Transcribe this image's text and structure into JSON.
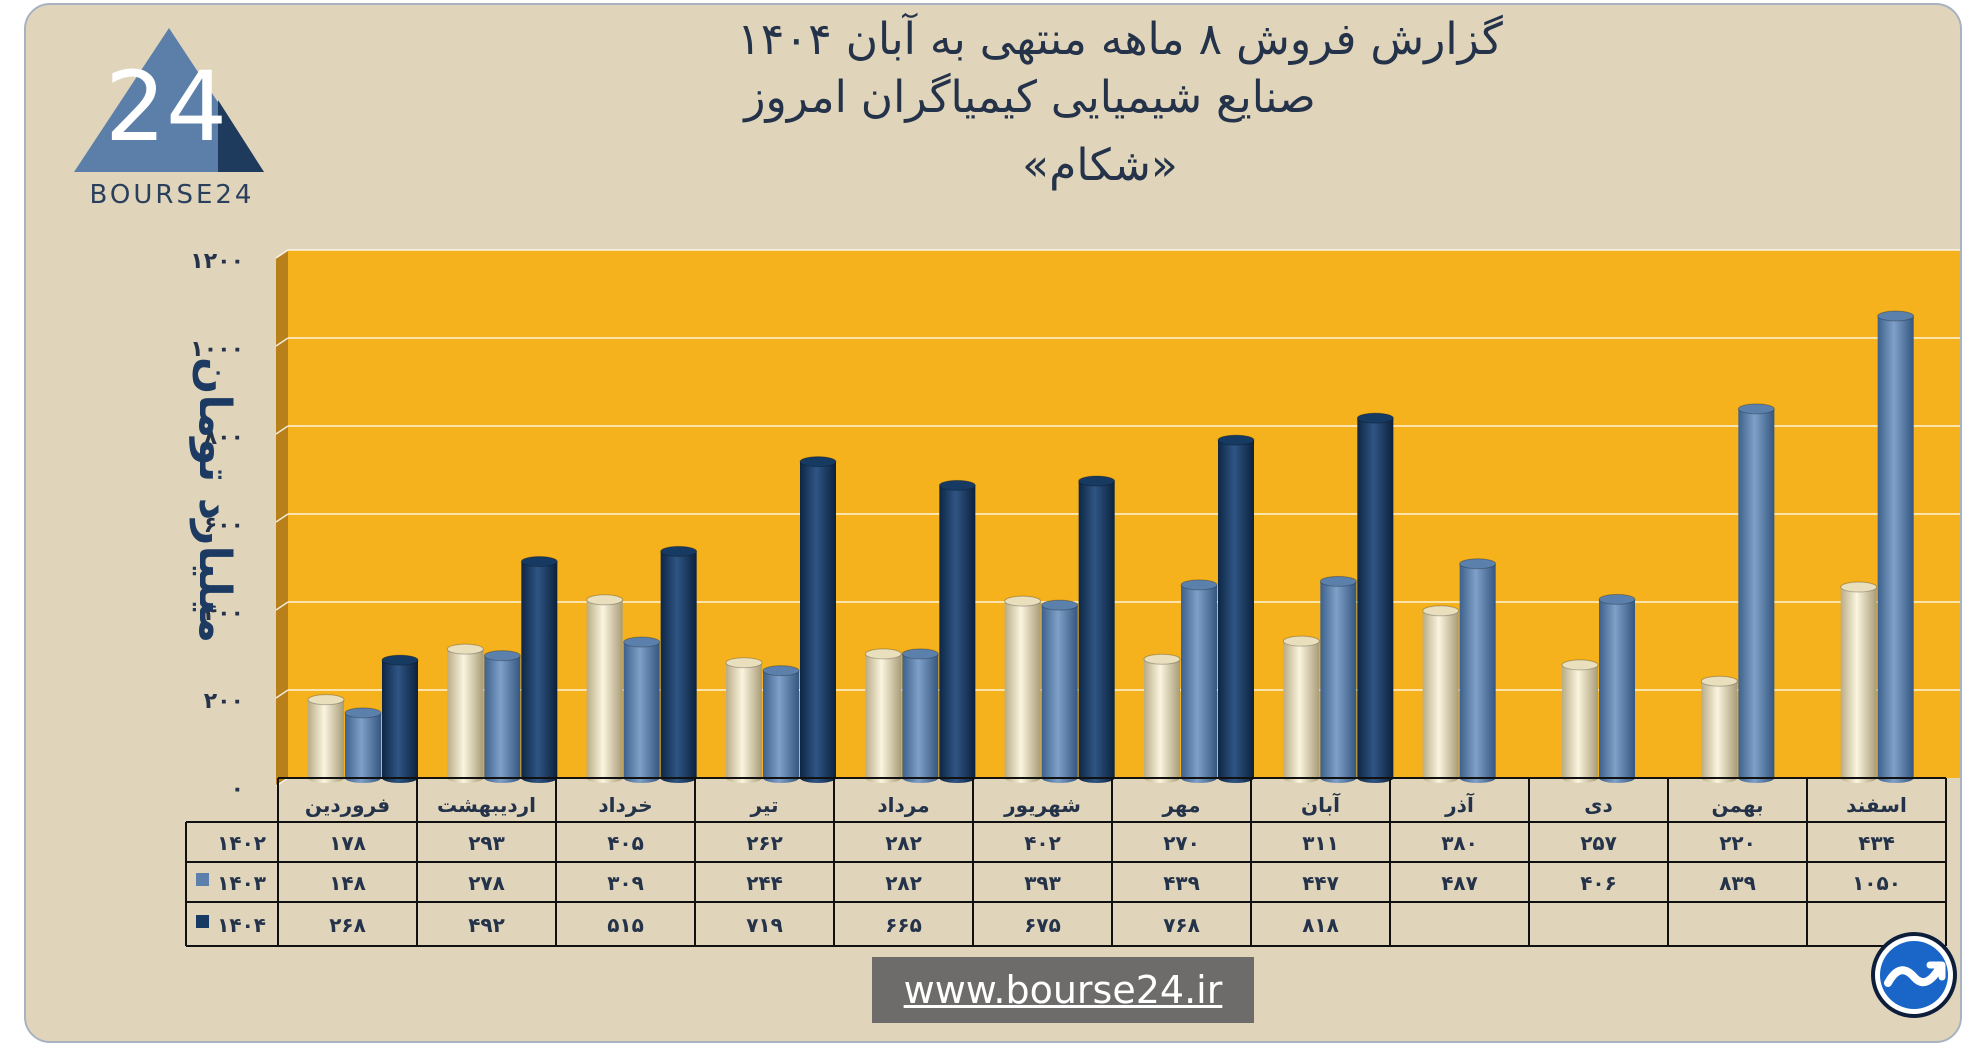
{
  "brand": {
    "logo_mark": "24",
    "logo_text": "BOURSE24",
    "website": "www.bourse24.ir",
    "icon": "trend-arrow-icon"
  },
  "title": {
    "line1": "گزارش  فروش ۸ ماهه منتهی به آبان ۱۴۰۴",
    "line2": "صنایع شیمیایی کیمیاگران امروز",
    "line3": "«شکام»"
  },
  "chart_data": {
    "type": "bar",
    "ylabel": "میلیارد تومان",
    "ylim": [
      0,
      1200
    ],
    "yticks": [
      0,
      200,
      400,
      600,
      800,
      1000,
      1200
    ],
    "ytick_labels": [
      "۰",
      "۲۰۰",
      "۴۰۰",
      "۶۰۰",
      "۸۰۰",
      "۱۰۰۰",
      "۱۲۰۰"
    ],
    "grid": true,
    "categories": [
      "فروردین",
      "اردیبهشت",
      "خرداد",
      "تیر",
      "مرداد",
      "شهریور",
      "مهر",
      "آبان",
      "آذر",
      "دی",
      "بهمن",
      "اسفند"
    ],
    "series": [
      {
        "name": "۱۴۰۲",
        "color": "#e9dfbd",
        "values": [
          178,
          293,
          405,
          262,
          282,
          402,
          270,
          311,
          380,
          257,
          220,
          434
        ],
        "labels": [
          "۱۷۸",
          "۲۹۳",
          "۴۰۵",
          "۲۶۲",
          "۲۸۲",
          "۴۰۲",
          "۲۷۰",
          "۳۱۱",
          "۳۸۰",
          "۲۵۷",
          "۲۲۰",
          "۴۳۴"
        ]
      },
      {
        "name": "۱۴۰۳",
        "color": "#5b80ab",
        "values": [
          148,
          278,
          309,
          244,
          282,
          393,
          439,
          447,
          487,
          406,
          839,
          1050
        ],
        "labels": [
          "۱۴۸",
          "۲۷۸",
          "۳۰۹",
          "۲۴۴",
          "۲۸۲",
          "۳۹۳",
          "۴۳۹",
          "۴۴۷",
          "۴۸۷",
          "۴۰۶",
          "۸۳۹",
          "۱۰۵۰"
        ]
      },
      {
        "name": "۱۴۰۴",
        "color": "#173a62",
        "values": [
          268,
          492,
          515,
          719,
          665,
          675,
          768,
          818,
          null,
          null,
          null,
          null
        ],
        "labels": [
          "۲۶۸",
          "۴۹۲",
          "۵۱۵",
          "۷۱۹",
          "۶۶۵",
          "۶۷۵",
          "۷۶۸",
          "۸۱۸",
          "",
          "",
          "",
          ""
        ]
      }
    ],
    "plot_background": "#f5b21c",
    "plot_side": "#b7801a"
  }
}
